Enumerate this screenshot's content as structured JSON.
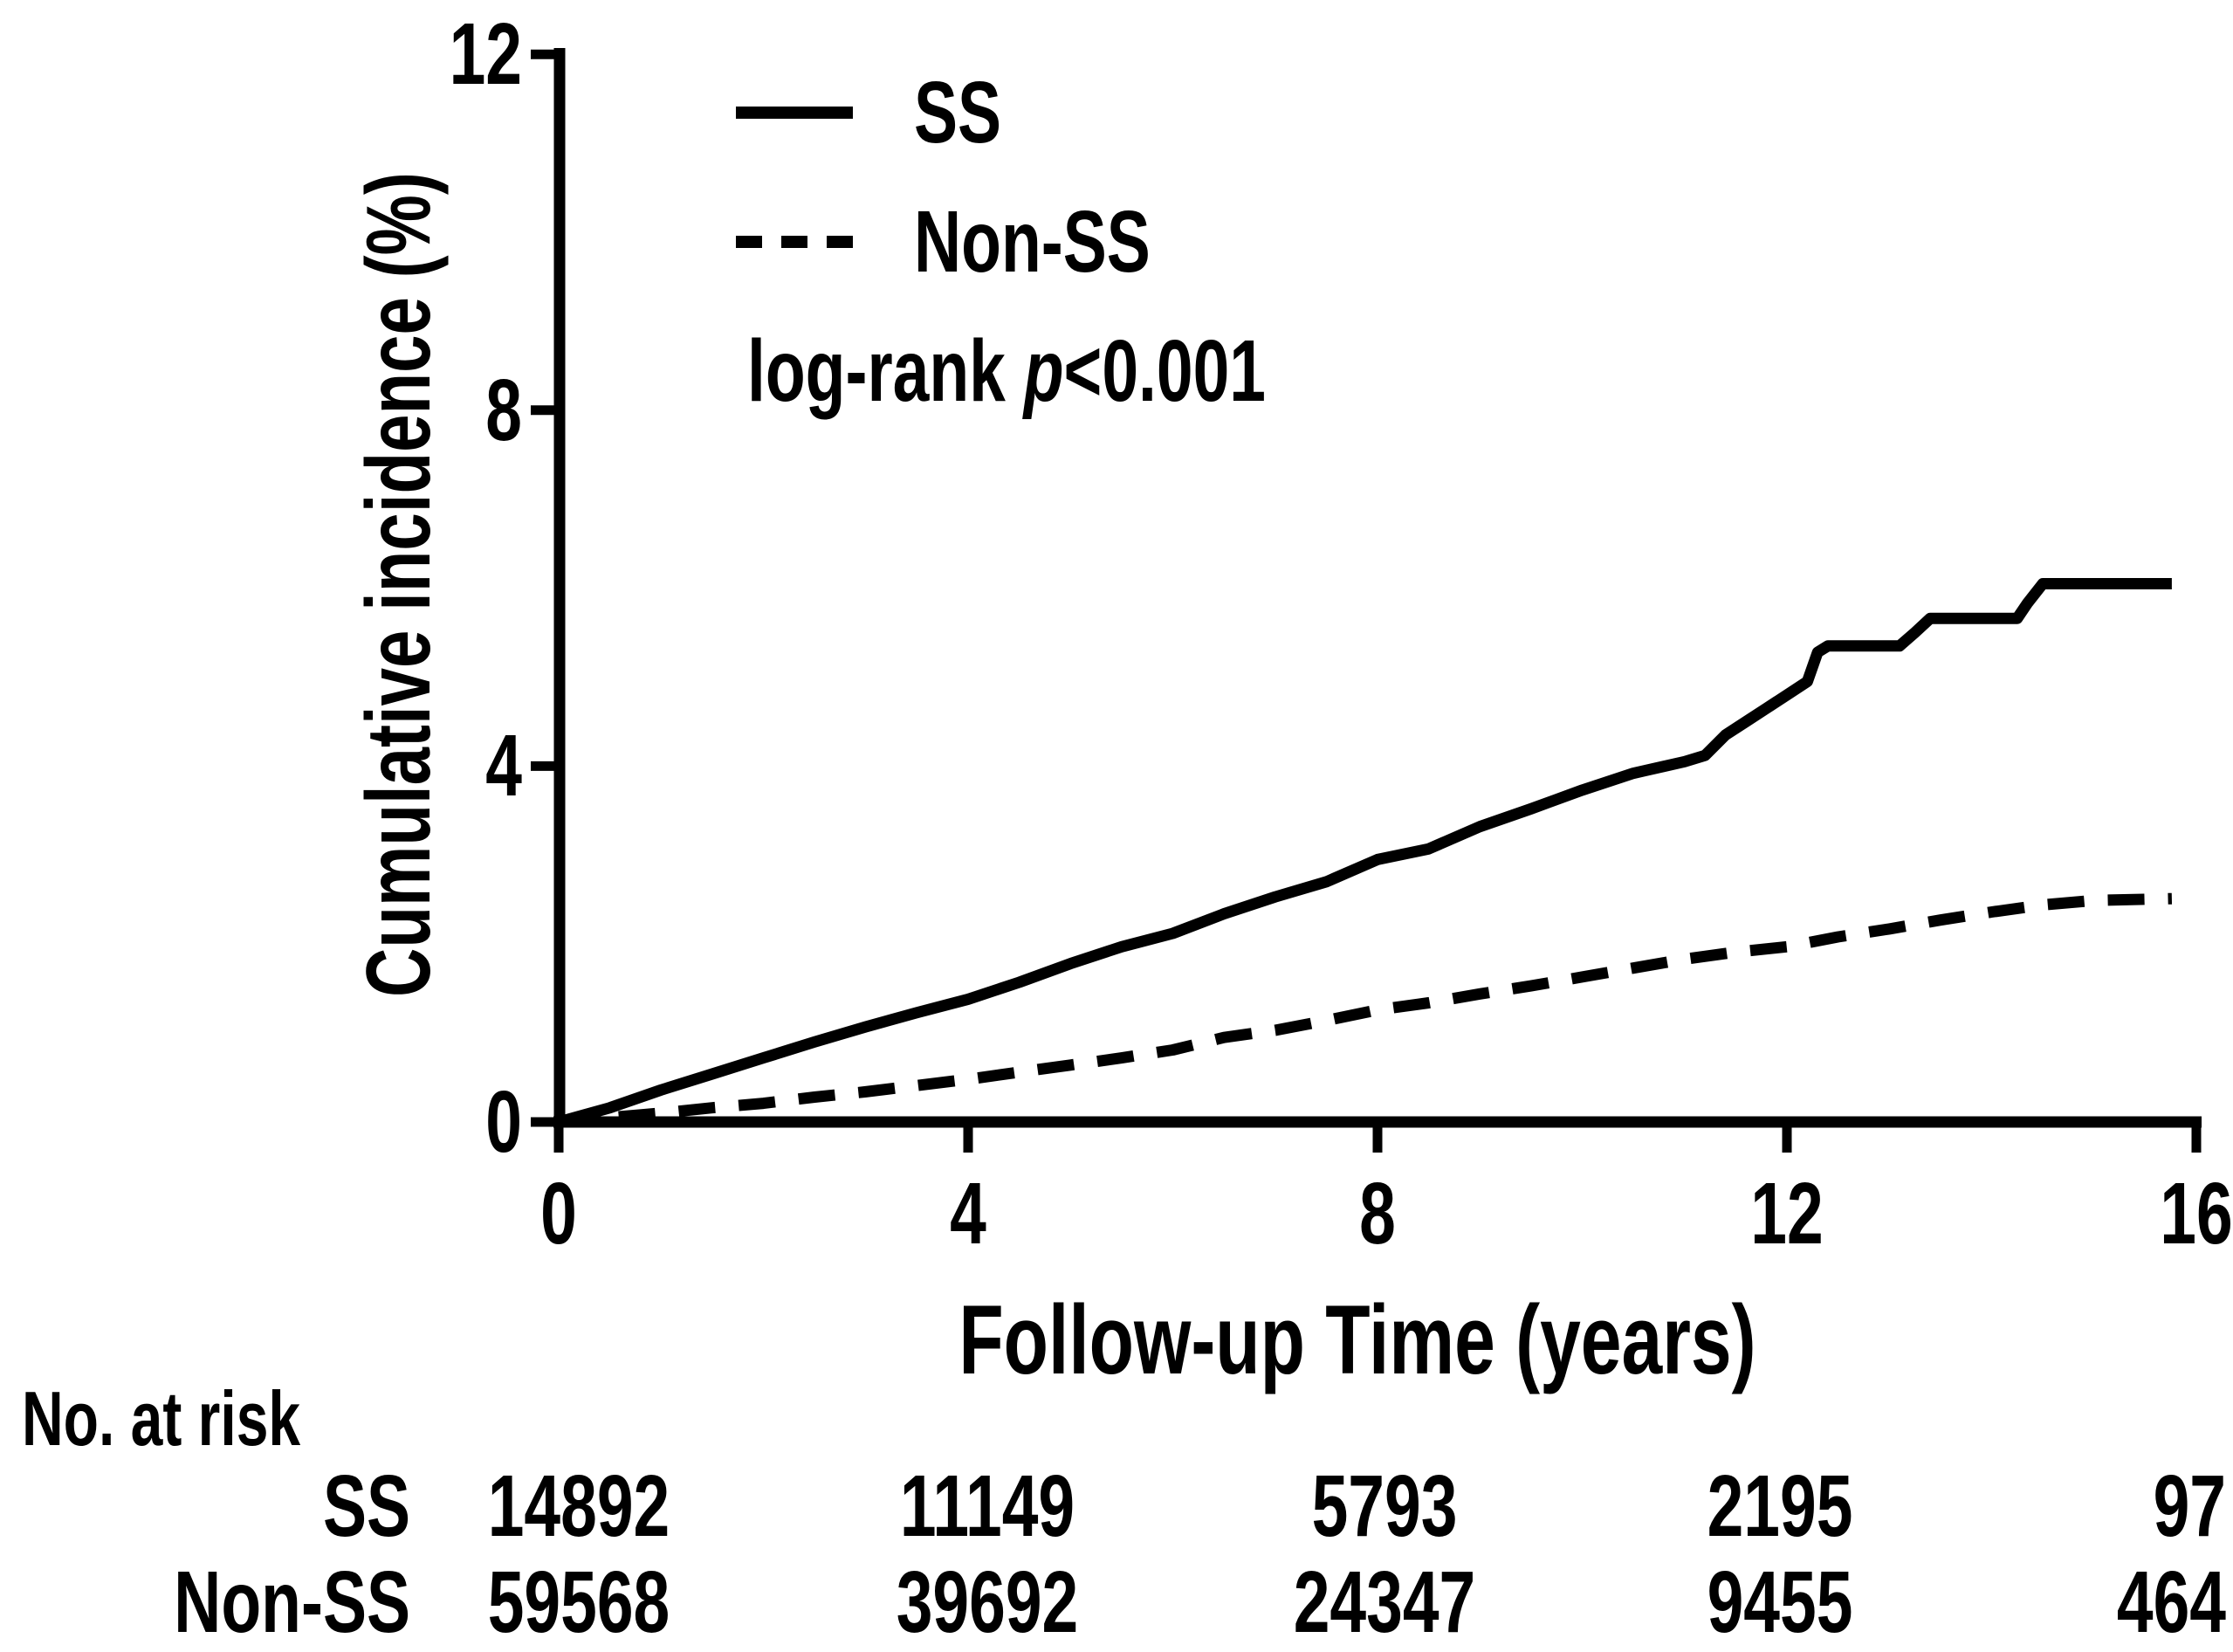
{
  "figure": {
    "y_axis": {
      "label": "Cumulative incidence (%)",
      "ticks": [
        0,
        4,
        8,
        12
      ],
      "max": 12
    },
    "x_axis": {
      "label": "Follow-up Time (years)",
      "ticks": [
        0,
        4,
        8,
        12,
        16
      ],
      "max": 16
    },
    "legend": {
      "items": [
        {
          "label": "SS",
          "style": "solid"
        },
        {
          "label": "Non-SS",
          "style": "dashed"
        }
      ]
    },
    "annotation": {
      "prefix": "log-rank ",
      "italic_var": "p",
      "value": "<0.001",
      "full": "log-rank p<0.001"
    }
  },
  "chart_data": {
    "type": "line",
    "title": "",
    "xlabel": "Follow-up Time (years)",
    "ylabel": "Cumulative incidence (%)",
    "xlim": [
      0,
      16
    ],
    "ylim": [
      0,
      12
    ],
    "xticks": [
      0,
      4,
      8,
      12,
      16
    ],
    "yticks": [
      0,
      4,
      8,
      12
    ],
    "grid": false,
    "legend_position": "upper-left-inside",
    "annotation": "log-rank p<0.001",
    "series": [
      {
        "name": "SS",
        "style": "solid",
        "points": [
          [
            0,
            0
          ],
          [
            0.5,
            0.16
          ],
          [
            1,
            0.36
          ],
          [
            1.5,
            0.54
          ],
          [
            2,
            0.72
          ],
          [
            2.5,
            0.9
          ],
          [
            3,
            1.07
          ],
          [
            3.5,
            1.23
          ],
          [
            4,
            1.38
          ],
          [
            4.5,
            1.57
          ],
          [
            5,
            1.78
          ],
          [
            5.5,
            1.97
          ],
          [
            6,
            2.12
          ],
          [
            6.5,
            2.34
          ],
          [
            7,
            2.53
          ],
          [
            7.5,
            2.7
          ],
          [
            8,
            2.95
          ],
          [
            8.5,
            3.07
          ],
          [
            9,
            3.32
          ],
          [
            9.5,
            3.52
          ],
          [
            10,
            3.73
          ],
          [
            10.5,
            3.92
          ],
          [
            11,
            4.05
          ],
          [
            11.2,
            4.12
          ],
          [
            11.4,
            4.35
          ],
          [
            11.6,
            4.5
          ],
          [
            11.8,
            4.65
          ],
          [
            12,
            4.8
          ],
          [
            12.2,
            4.95
          ],
          [
            12.3,
            5.28
          ],
          [
            12.4,
            5.35
          ],
          [
            13.1,
            5.35
          ],
          [
            13.25,
            5.5
          ],
          [
            13.4,
            5.66
          ],
          [
            14.25,
            5.66
          ],
          [
            14.35,
            5.83
          ],
          [
            14.5,
            6.05
          ],
          [
            15.76,
            6.05
          ]
        ]
      },
      {
        "name": "Non-SS",
        "style": "dashed",
        "points": [
          [
            0,
            0
          ],
          [
            0.5,
            0.05
          ],
          [
            1,
            0.1
          ],
          [
            1.5,
            0.16
          ],
          [
            2,
            0.21
          ],
          [
            2.5,
            0.28
          ],
          [
            3,
            0.34
          ],
          [
            3.5,
            0.41
          ],
          [
            4,
            0.48
          ],
          [
            4.5,
            0.56
          ],
          [
            5,
            0.64
          ],
          [
            5.5,
            0.72
          ],
          [
            6,
            0.81
          ],
          [
            6.5,
            0.95
          ],
          [
            7,
            1.03
          ],
          [
            7.5,
            1.14
          ],
          [
            8,
            1.26
          ],
          [
            8.5,
            1.34
          ],
          [
            9,
            1.44
          ],
          [
            9.5,
            1.53
          ],
          [
            10,
            1.63
          ],
          [
            10.5,
            1.73
          ],
          [
            11,
            1.83
          ],
          [
            11.5,
            1.91
          ],
          [
            12,
            1.97
          ],
          [
            12.5,
            2.08
          ],
          [
            13,
            2.17
          ],
          [
            13.5,
            2.27
          ],
          [
            14,
            2.36
          ],
          [
            14.5,
            2.44
          ],
          [
            15,
            2.49
          ],
          [
            15.76,
            2.51
          ]
        ]
      }
    ]
  },
  "risk_table": {
    "title": "No. at risk",
    "rows": [
      {
        "label": "SS",
        "values": [
          "14892",
          "11149",
          "5793",
          "2195",
          "97"
        ]
      },
      {
        "label": "Non-SS",
        "values": [
          "59568",
          "39692",
          "24347",
          "9455",
          "464"
        ]
      }
    ]
  }
}
